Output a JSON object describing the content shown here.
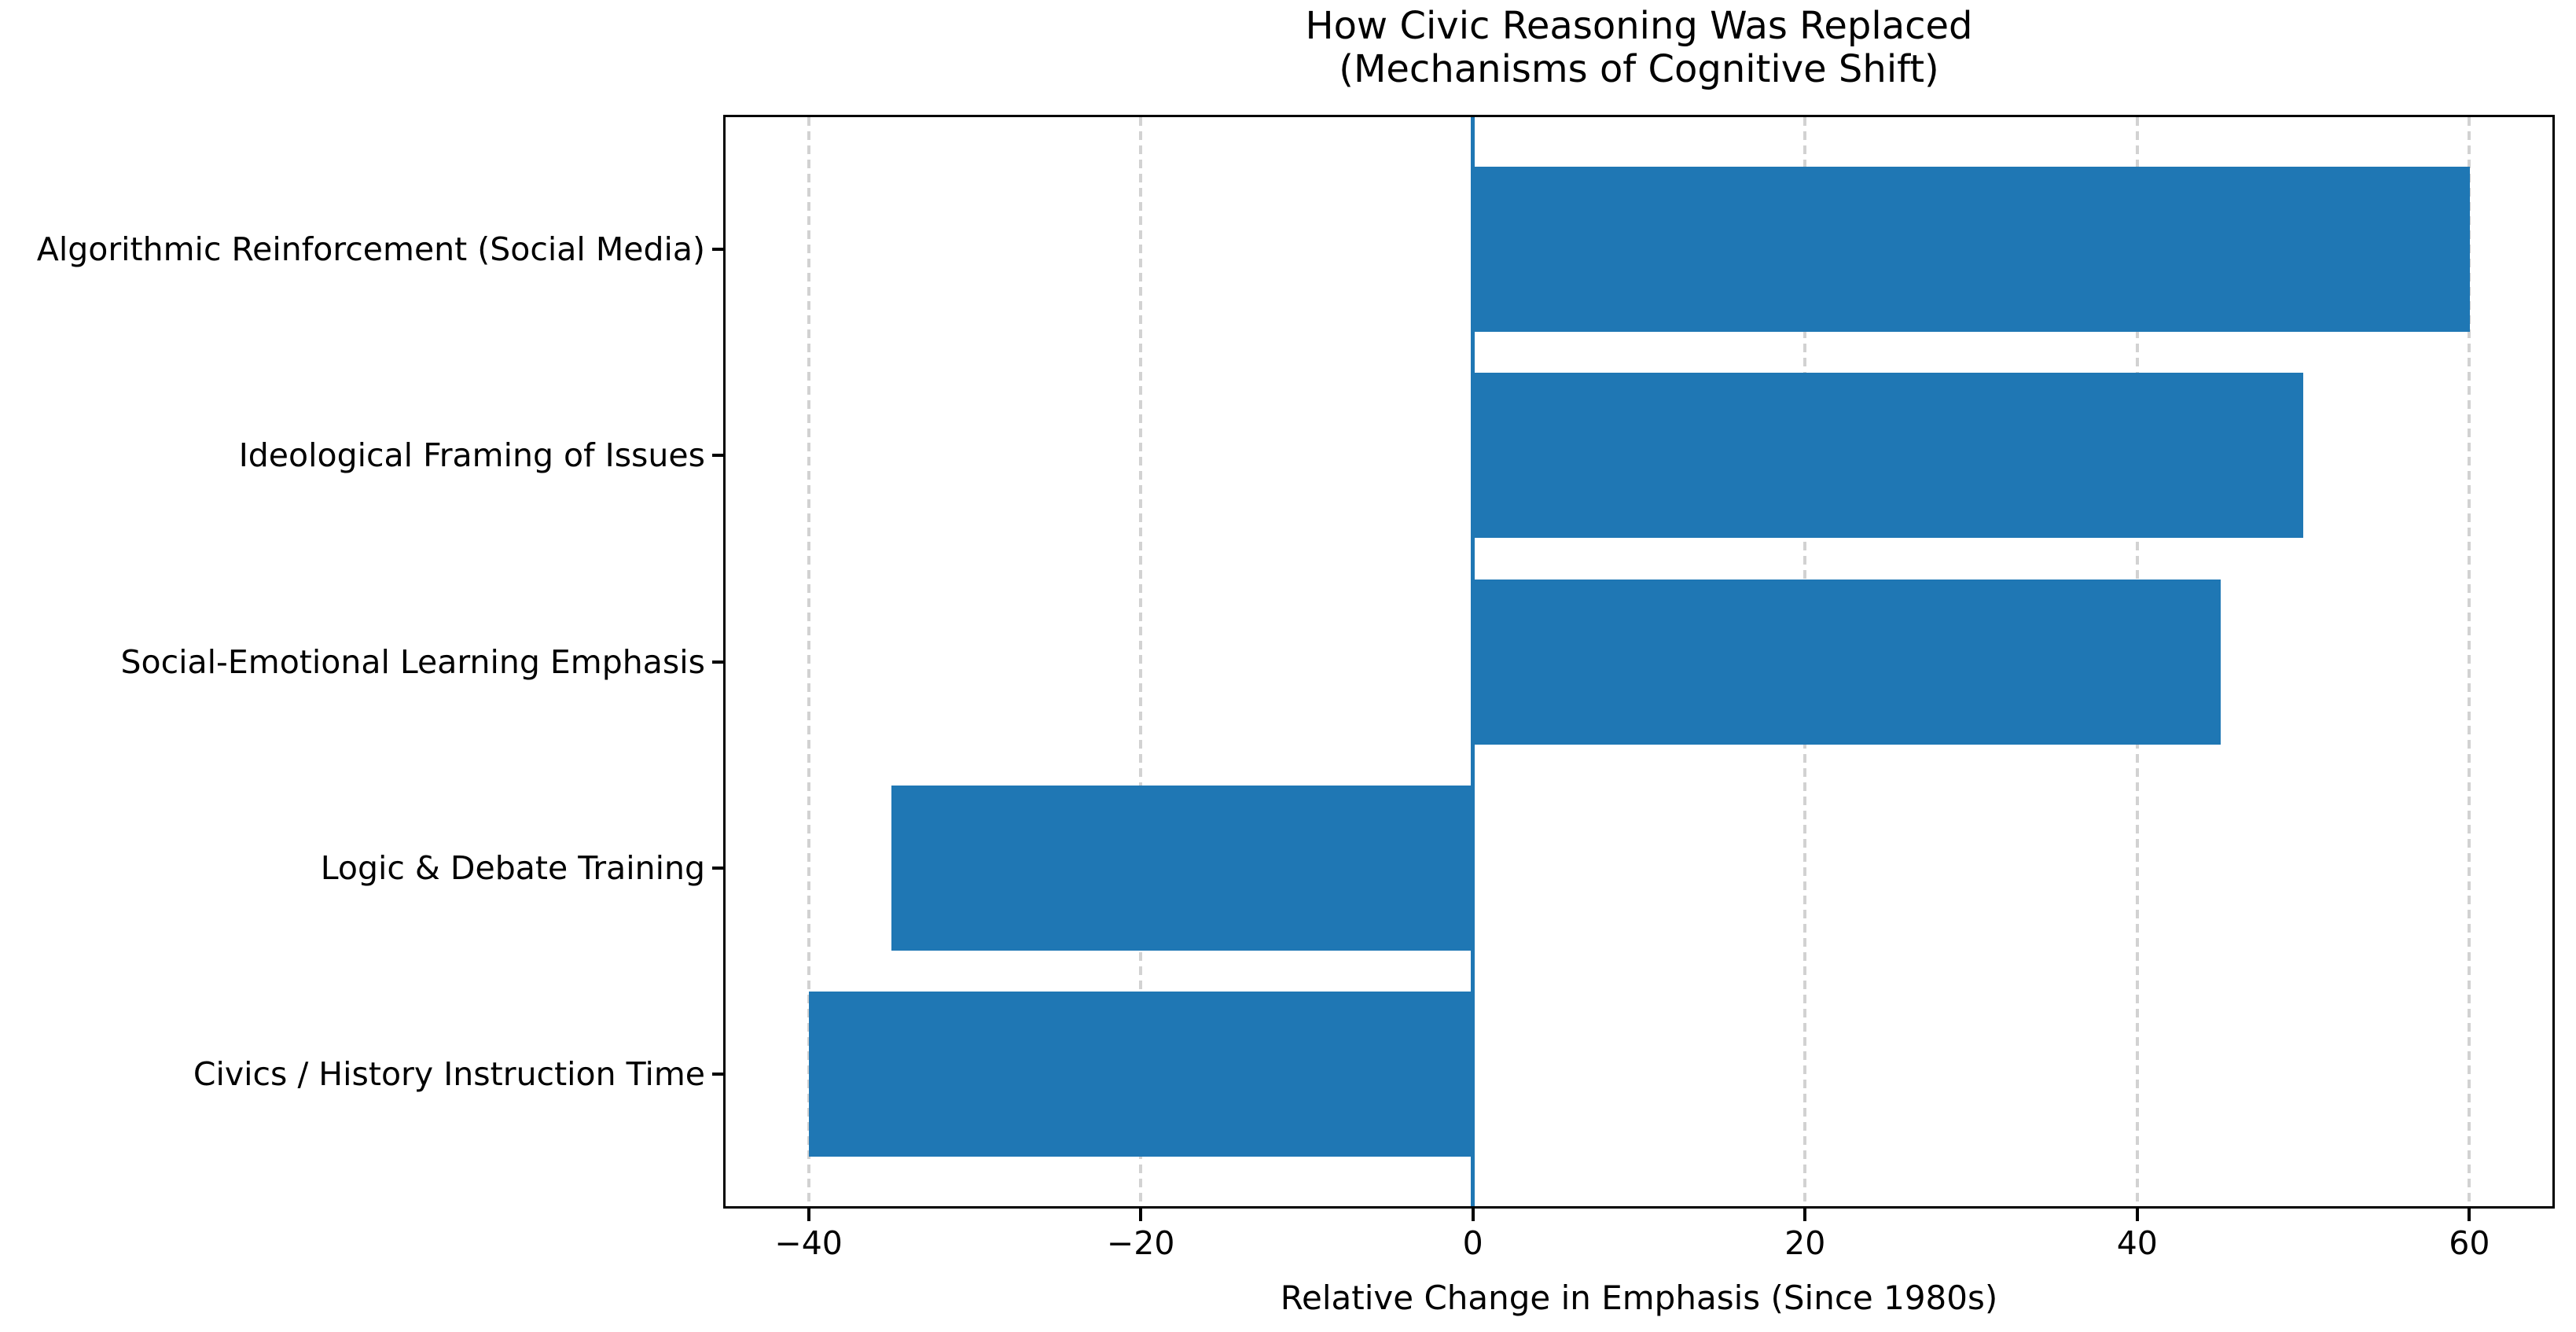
{
  "figure": {
    "title_line1": "How Civic Reasoning Was Replaced",
    "title_line2": "(Mechanisms of Cognitive Shift)",
    "xlabel": "Relative Change in Emphasis (Since 1980s)"
  },
  "chart_data": {
    "type": "bar",
    "orientation": "horizontal",
    "title": "How Civic Reasoning Was Replaced\n(Mechanisms of Cognitive Shift)",
    "xlabel": "Relative Change in Emphasis (Since 1980s)",
    "ylabel": "",
    "categories": [
      "Algorithmic Reinforcement (Social Media)",
      "Ideological Framing of Issues",
      "Social-Emotional Learning Emphasis",
      "Logic & Debate Training",
      "Civics / History Instruction Time"
    ],
    "values": [
      60,
      50,
      45,
      -35,
      -40
    ],
    "xlim": [
      -45,
      65
    ],
    "xticks": [
      -40,
      -20,
      0,
      20,
      40,
      60
    ],
    "xtick_labels": [
      "−40",
      "−20",
      "0",
      "20",
      "40",
      "60"
    ],
    "bar_color": "#1f77b4",
    "zero_line": 0,
    "zero_line_color": "#1f77b4",
    "grid": true,
    "gridline_color": "#d2d2d2",
    "gridline_style": "dashed",
    "bar_height_frac": 0.8,
    "y_span_units": 5.28,
    "legend_position": "none",
    "frame": "full-box"
  }
}
